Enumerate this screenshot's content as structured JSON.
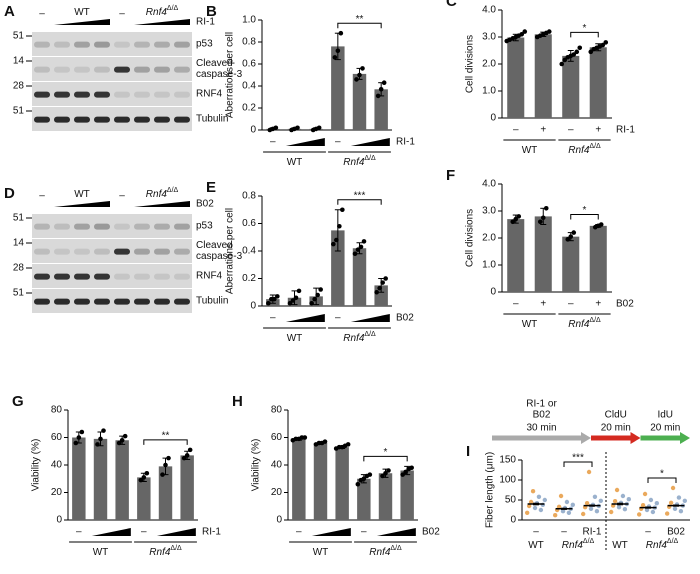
{
  "blots": [
    {
      "panel": "A",
      "treatment": "RI-1",
      "lane_label": "–",
      "groups": [
        {
          "name": "WT"
        },
        {
          "name": "Rnf4",
          "sup": "Δ/Δ"
        }
      ],
      "rows": [
        {
          "label": [
            "p53"
          ],
          "marker": "51"
        },
        {
          "label": [
            "Cleaved",
            "caspase-3"
          ],
          "marker": "14"
        },
        {
          "label": [
            "RNF4"
          ],
          "marker": "28"
        },
        {
          "label": [
            "Tubulin"
          ],
          "marker": "51"
        }
      ]
    },
    {
      "panel": "D",
      "treatment": "B02",
      "lane_label": "–",
      "groups": [
        {
          "name": "WT"
        },
        {
          "name": "Rnf4",
          "sup": "Δ/Δ"
        }
      ],
      "rows": [
        {
          "label": [
            "p53"
          ],
          "marker": "51"
        },
        {
          "label": [
            "Cleaved",
            "caspase-3"
          ],
          "marker": "14"
        },
        {
          "label": [
            "RNF4"
          ],
          "marker": "28"
        },
        {
          "label": [
            "Tubulin"
          ],
          "marker": "51"
        }
      ]
    }
  ],
  "chart_data": [
    {
      "type": "bar",
      "panel": "B",
      "ylabel": "Aberrations per cell",
      "color": "#666666",
      "ylim": [
        0,
        1.0
      ],
      "yticks": [
        0,
        0.2,
        0.4,
        0.6,
        0.8,
        {
          "value": 1.0,
          "label": "1.0"
        }
      ],
      "categories": [
        "–",
        null,
        null,
        "–",
        null,
        null
      ],
      "values": [
        0.01,
        0.01,
        0.01,
        0.76,
        0.51,
        0.37
      ],
      "errors": [
        0.01,
        0.01,
        0.01,
        0.12,
        0.05,
        0.06
      ],
      "points": [
        [
          0.0,
          0.01,
          0.02
        ],
        [
          0.0,
          0.01,
          0.02
        ],
        [
          0.0,
          0.01,
          0.02
        ],
        [
          0.66,
          0.72,
          0.88
        ],
        [
          0.46,
          0.5,
          0.56
        ],
        [
          0.31,
          0.37,
          0.43
        ]
      ],
      "treatment": "RI-1",
      "groups": [
        {
          "name": "WT",
          "from": 0,
          "to": 2
        },
        {
          "name": "Rnf4",
          "sup": "Δ/Δ",
          "from": 3,
          "to": 5
        }
      ],
      "significance": [
        {
          "from": 3,
          "to": 5,
          "label": "**"
        }
      ]
    },
    {
      "type": "bar",
      "panel": "C",
      "ylabel": "Cell divisions",
      "color": "#666666",
      "ylim": [
        0,
        4.0
      ],
      "yticks": [
        0,
        {
          "value": 1.0,
          "label": "1.0"
        },
        {
          "value": 2.0,
          "label": "2.0"
        },
        {
          "value": 3.0,
          "label": "3.0"
        },
        {
          "value": 4.0,
          "label": "4.0"
        }
      ],
      "categories": [
        "–",
        "+",
        "–",
        "+"
      ],
      "values": [
        2.98,
        3.1,
        2.3,
        2.62
      ],
      "errors": [
        0.12,
        0.08,
        0.2,
        0.13
      ],
      "points": [
        [
          2.85,
          2.9,
          2.95,
          3.0,
          3.05,
          3.1,
          3.2
        ],
        [
          3.0,
          3.05,
          3.1,
          3.15,
          3.2
        ],
        [
          2.0,
          2.15,
          2.25,
          2.3,
          2.35,
          2.45,
          2.6
        ],
        [
          2.45,
          2.55,
          2.6,
          2.65,
          2.7,
          2.8
        ]
      ],
      "treatment": "RI-1",
      "groups": [
        {
          "name": "WT",
          "from": 0,
          "to": 1
        },
        {
          "name": "Rnf4",
          "sup": "Δ/Δ",
          "from": 2,
          "to": 3
        }
      ],
      "significance": [
        {
          "from": 2,
          "to": 3,
          "label": "*"
        }
      ]
    },
    {
      "type": "bar",
      "panel": "E",
      "ylabel": "Aberrations per cell",
      "color": "#666666",
      "ylim": [
        0,
        0.8
      ],
      "yticks": [
        0,
        0.2,
        0.4,
        0.6,
        0.8
      ],
      "categories": [
        "–",
        null,
        null,
        "–",
        null,
        null
      ],
      "values": [
        0.05,
        0.06,
        0.07,
        0.55,
        0.42,
        0.15
      ],
      "errors": [
        0.03,
        0.05,
        0.06,
        0.15,
        0.04,
        0.05
      ],
      "points": [
        [
          0.02,
          0.05,
          0.05,
          0.07
        ],
        [
          0.02,
          0.04,
          0.06,
          0.11
        ],
        [
          0.02,
          0.05,
          0.08,
          0.12
        ],
        [
          0.45,
          0.48,
          0.58,
          0.7
        ],
        [
          0.38,
          0.41,
          0.43,
          0.47
        ],
        [
          0.1,
          0.13,
          0.17,
          0.2
        ]
      ],
      "treatment": "B02",
      "groups": [
        {
          "name": "WT",
          "from": 0,
          "to": 2
        },
        {
          "name": "Rnf4",
          "sup": "Δ/Δ",
          "from": 3,
          "to": 5
        }
      ],
      "significance": [
        {
          "from": 3,
          "to": 5,
          "label": "***"
        }
      ]
    },
    {
      "type": "bar",
      "panel": "F",
      "ylabel": "Cell divisions",
      "color": "#666666",
      "ylim": [
        0,
        4.0
      ],
      "yticks": [
        0,
        {
          "value": 1.0,
          "label": "1.0"
        },
        {
          "value": 2.0,
          "label": "2.0"
        },
        {
          "value": 3.0,
          "label": "3.0"
        },
        {
          "value": 4.0,
          "label": "4.0"
        }
      ],
      "categories": [
        "–",
        "+",
        "–",
        "+"
      ],
      "values": [
        2.7,
        2.8,
        2.05,
        2.45
      ],
      "errors": [
        0.15,
        0.3,
        0.15,
        0.05
      ],
      "points": [
        [
          2.6,
          2.7,
          2.8
        ],
        [
          2.6,
          2.75,
          3.1
        ],
        [
          1.95,
          2.05,
          2.2
        ],
        [
          2.4,
          2.45,
          2.5
        ]
      ],
      "treatment": "B02",
      "groups": [
        {
          "name": "WT",
          "from": 0,
          "to": 1
        },
        {
          "name": "Rnf4",
          "sup": "Δ/Δ",
          "from": 2,
          "to": 3
        }
      ],
      "significance": [
        {
          "from": 2,
          "to": 3,
          "label": "*"
        }
      ]
    },
    {
      "type": "bar",
      "panel": "G",
      "ylabel": "Viability (%)",
      "color": "#666666",
      "ylim": [
        0,
        80
      ],
      "yticks": [
        0,
        20,
        40,
        60,
        80
      ],
      "categories": [
        "–",
        null,
        null,
        "–",
        null,
        null
      ],
      "values": [
        60,
        59,
        58,
        31,
        39,
        47
      ],
      "errors": [
        4,
        5,
        3,
        3,
        6,
        3
      ],
      "points": [
        [
          56,
          60,
          64
        ],
        [
          55,
          59,
          65
        ],
        [
          56,
          58,
          61
        ],
        [
          29,
          31,
          34
        ],
        [
          33,
          40,
          45
        ],
        [
          45,
          47,
          51
        ]
      ],
      "treatment": "RI-1",
      "groups": [
        {
          "name": "WT",
          "from": 0,
          "to": 2
        },
        {
          "name": "Rnf4",
          "sup": "Δ/Δ",
          "from": 3,
          "to": 5
        }
      ],
      "significance": [
        {
          "from": 3,
          "to": 5,
          "label": "**"
        }
      ]
    },
    {
      "type": "bar",
      "panel": "H",
      "ylabel": "Viability (%)",
      "color": "#666666",
      "ylim": [
        0,
        80
      ],
      "yticks": [
        0,
        20,
        40,
        60,
        80
      ],
      "categories": [
        "–",
        null,
        null,
        "–",
        null,
        null
      ],
      "values": [
        59,
        56,
        53,
        30,
        34,
        36
      ],
      "errors": [
        1,
        1,
        1,
        3,
        3,
        3
      ],
      "points": [
        [
          58,
          59,
          59,
          60,
          60
        ],
        [
          55,
          56,
          56,
          57
        ],
        [
          52,
          53,
          53,
          54,
          55
        ],
        [
          26,
          29,
          30,
          32,
          33
        ],
        [
          32,
          34,
          36
        ],
        [
          33,
          35,
          37,
          38
        ]
      ],
      "treatment": "B02",
      "groups": [
        {
          "name": "WT",
          "from": 0,
          "to": 2
        },
        {
          "name": "Rnf4",
          "sup": "Δ/Δ",
          "from": 3,
          "to": 5
        }
      ],
      "significance": [
        {
          "from": 3,
          "to": 5,
          "label": "*"
        }
      ]
    },
    {
      "type": "dotplot",
      "panel": "I",
      "ylabel": "Fiber length (μm)",
      "color": "#8fa8c8",
      "accent": "#e8a04a",
      "ylim": [
        0,
        150
      ],
      "yticks": [
        0,
        50,
        100,
        150
      ],
      "categories": [
        "–",
        "–",
        "RI-1",
        null,
        "–",
        "B02"
      ],
      "values": [
        40,
        28,
        36,
        40,
        31,
        36
      ],
      "errors": [
        2,
        1.5,
        1.5,
        2,
        1.5,
        1.5
      ],
      "points": [
        [
          18,
          25,
          30,
          35,
          38,
          42,
          45,
          50,
          58,
          72
        ],
        [
          12,
          18,
          22,
          25,
          28,
          30,
          33,
          38,
          45,
          60
        ],
        [
          15,
          22,
          28,
          32,
          35,
          38,
          42,
          48,
          58,
          120
        ],
        [
          20,
          27,
          32,
          36,
          40,
          43,
          47,
          52,
          60,
          75
        ],
        [
          14,
          20,
          25,
          28,
          31,
          34,
          37,
          42,
          50,
          65
        ],
        [
          16,
          22,
          28,
          33,
          36,
          39,
          43,
          48,
          56,
          80
        ]
      ],
      "groups": [
        {
          "name": "WT",
          "from": 0,
          "to": 0
        },
        {
          "name": "Rnf4",
          "sup": "Δ/Δ",
          "from": 1,
          "to": 2
        },
        {
          "name": "WT",
          "from": 3,
          "to": 3
        },
        {
          "name": "Rnf4",
          "sup": "Δ/Δ",
          "from": 4,
          "to": 5
        }
      ],
      "significance": [
        {
          "from": 1,
          "to": 2,
          "label": "***"
        },
        {
          "from": 4,
          "to": 5,
          "label": "*"
        }
      ],
      "timeline": [
        {
          "text": [
            "RI-1 or",
            "B02"
          ],
          "sub": "30 min",
          "color": "#aaaaaa"
        },
        {
          "text": [
            "CldU"
          ],
          "sub": "20 min",
          "color": "#d42a20"
        },
        {
          "text": [
            "IdU"
          ],
          "sub": "20 min",
          "color": "#4caf50"
        }
      ]
    }
  ]
}
